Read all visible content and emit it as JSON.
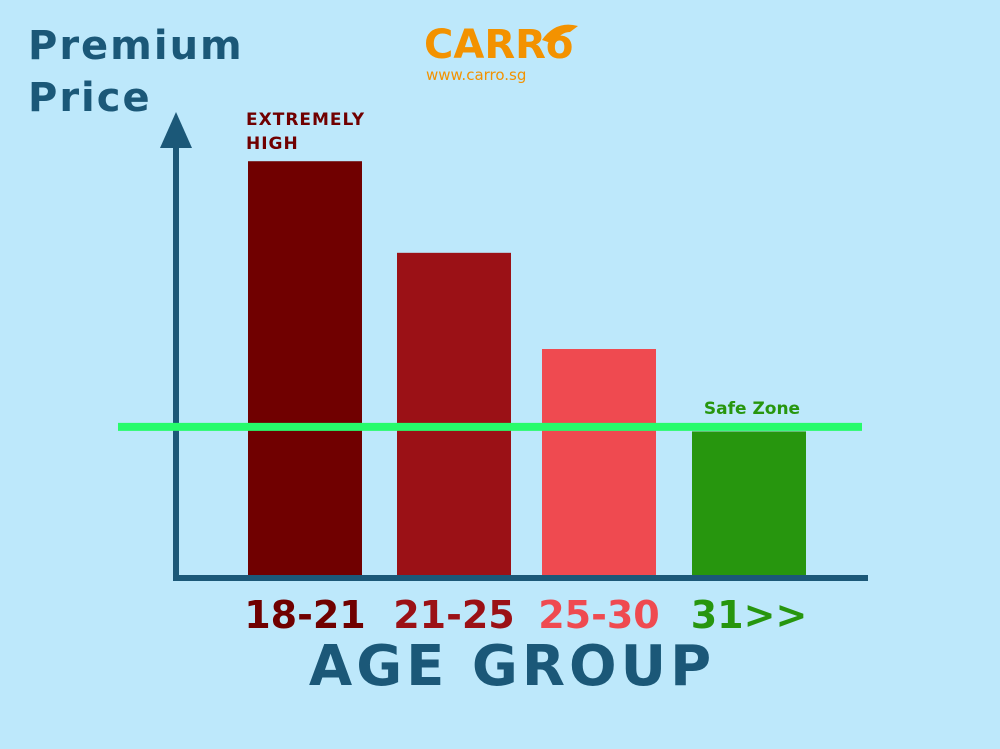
{
  "chart_data": {
    "type": "bar",
    "y_label": "Premium Price",
    "x_label": "AGE GROUP",
    "logo": "CARRo",
    "logo_url": "www.carro.sg",
    "annotation": "EXTREMELY HIGH",
    "categories": [
      "18-21",
      "21-25",
      "25-30",
      "31>>"
    ],
    "values": [
      91,
      71,
      50,
      32
    ],
    "colors": [
      "#700000",
      "#9b1116",
      "#ef4a50",
      "#27960e"
    ],
    "ylim": [
      0,
      100
    ],
    "reference_line": {
      "label": "Safe Zone",
      "value": 33,
      "color": "#27fb6b"
    }
  }
}
